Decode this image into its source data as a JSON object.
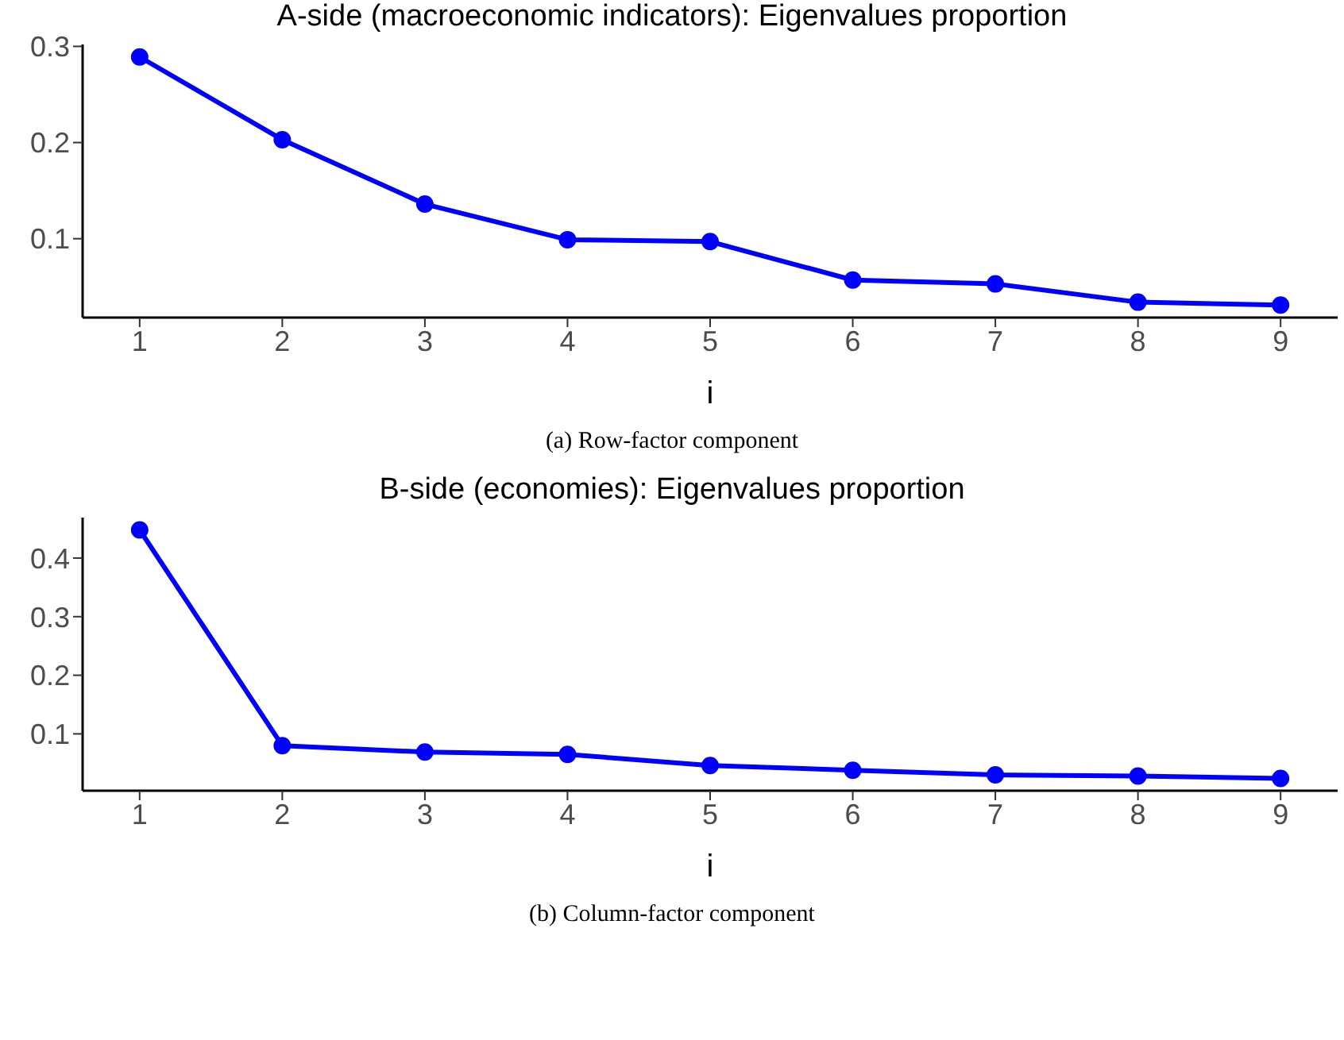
{
  "chart_data": [
    {
      "type": "line",
      "title": "A-side (macroeconomic indicators): Eigenvalues proportion",
      "xlabel": "i",
      "x": [
        1,
        2,
        3,
        4,
        5,
        6,
        7,
        8,
        9
      ],
      "series": [
        {
          "color": "#0000ff",
          "values": [
            0.289,
            0.203,
            0.136,
            0.099,
            0.097,
            0.057,
            0.053,
            0.034,
            0.031
          ]
        }
      ],
      "xlim": [
        0.6,
        9.4
      ],
      "xticks": [
        1,
        2,
        3,
        4,
        5,
        6,
        7,
        8,
        9
      ],
      "ylim": [
        0.018,
        0.302
      ],
      "yticks": [
        0.1,
        0.2,
        0.3
      ],
      "grid": false,
      "legend": false,
      "marker": "circle",
      "line_style": "solid",
      "annotations": [
        "(a) Row-factor component"
      ]
    },
    {
      "type": "line",
      "title": "B-side (economies): Eigenvalues proportion",
      "xlabel": "i",
      "x": [
        1,
        2,
        3,
        4,
        5,
        6,
        7,
        8,
        9
      ],
      "series": [
        {
          "color": "#0000ff",
          "values": [
            0.448,
            0.08,
            0.069,
            0.065,
            0.046,
            0.038,
            0.03,
            0.028,
            0.024
          ]
        }
      ],
      "xlim": [
        0.6,
        9.4
      ],
      "xticks": [
        1,
        2,
        3,
        4,
        5,
        6,
        7,
        8,
        9
      ],
      "ylim": [
        0.003,
        0.469
      ],
      "yticks": [
        0.1,
        0.2,
        0.3,
        0.4
      ],
      "grid": false,
      "legend": false,
      "marker": "circle",
      "line_style": "solid",
      "annotations": [
        "(b) Column-factor component"
      ]
    }
  ]
}
